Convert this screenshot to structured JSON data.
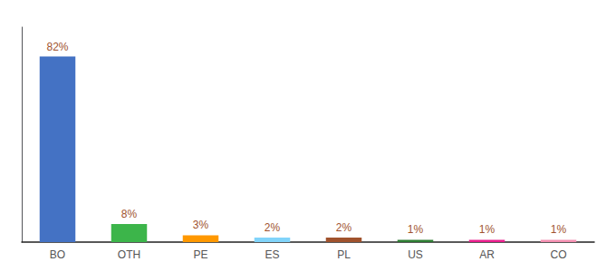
{
  "chart_data": {
    "type": "bar",
    "categories": [
      "BO",
      "OTH",
      "PE",
      "ES",
      "PL",
      "US",
      "AR",
      "CO"
    ],
    "values": [
      82,
      8,
      3,
      2,
      2,
      1,
      1,
      1
    ],
    "value_labels": [
      "82%",
      "8%",
      "3%",
      "2%",
      "2%",
      "1%",
      "1%",
      "1%"
    ],
    "colors": [
      "#4472C4",
      "#3CB54A",
      "#FF9800",
      "#81D4FA",
      "#A0522D",
      "#2E7D32",
      "#E91E8C",
      "#F48FB1"
    ],
    "ylim": [
      0,
      95
    ],
    "data_labels": true,
    "tick_labels": "x",
    "grid": false
  }
}
